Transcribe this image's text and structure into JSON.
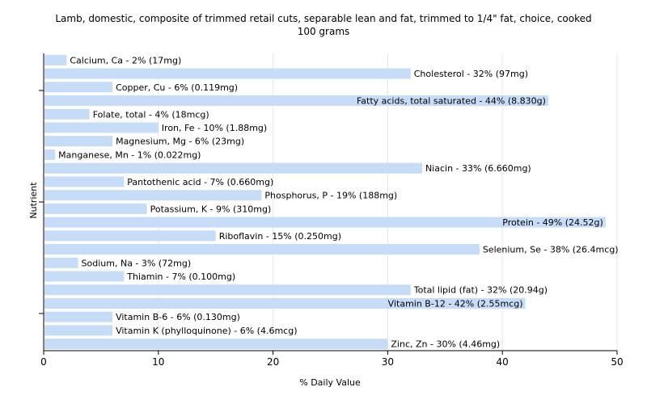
{
  "chart_data": {
    "type": "bar",
    "orientation": "horizontal",
    "title": "Lamb, domestic, composite of trimmed retail cuts, separable lean and fat, trimmed to 1/4\" fat, choice, cooked",
    "subtitle": "100 grams",
    "xlabel": "% Daily Value",
    "ylabel": "Nutrient",
    "xlim": [
      0,
      50
    ],
    "xticks": [
      0,
      10,
      20,
      30,
      40,
      50
    ],
    "grid": true,
    "bar_color": "#c6dcf7",
    "categories": [
      "Calcium, Ca",
      "Cholesterol",
      "Copper, Cu",
      "Fatty acids, total saturated",
      "Folate, total",
      "Iron, Fe",
      "Magnesium, Mg",
      "Manganese, Mn",
      "Niacin",
      "Pantothenic acid",
      "Phosphorus, P",
      "Potassium, K",
      "Protein",
      "Riboflavin",
      "Selenium, Se",
      "Sodium, Na",
      "Thiamin",
      "Total lipid (fat)",
      "Vitamin B-12",
      "Vitamin B-6",
      "Vitamin K (phylloquinone)",
      "Zinc, Zn"
    ],
    "values": [
      2,
      32,
      6,
      44,
      4,
      10,
      6,
      1,
      33,
      7,
      19,
      9,
      49,
      15,
      38,
      3,
      7,
      32,
      42,
      6,
      6,
      30
    ],
    "labels": [
      "Calcium, Ca - 2% (17mg)",
      "Cholesterol - 32% (97mg)",
      "Copper, Cu - 6% (0.119mg)",
      "Fatty acids, total saturated - 44% (8.830g)",
      "Folate, total - 4% (18mcg)",
      "Iron, Fe - 10% (1.88mg)",
      "Magnesium, Mg - 6% (23mg)",
      "Manganese, Mn - 1% (0.022mg)",
      "Niacin - 33% (6.660mg)",
      "Pantothenic acid - 7% (0.660mg)",
      "Phosphorus, P - 19% (188mg)",
      "Potassium, K - 9% (310mg)",
      "Protein - 49% (24.52g)",
      "Riboflavin - 15% (0.250mg)",
      "Selenium, Se - 38% (26.4mcg)",
      "Sodium, Na - 3% (72mg)",
      "Thiamin - 7% (0.100mg)",
      "Total lipid (fat) - 32% (20.94g)",
      "Vitamin B-12 - 42% (2.55mcg)",
      "Vitamin B-6 - 6% (0.130mg)",
      "Vitamin K (phylloquinone) - 6% (4.6mcg)",
      "Zinc, Zn - 30% (4.46mg)"
    ]
  }
}
